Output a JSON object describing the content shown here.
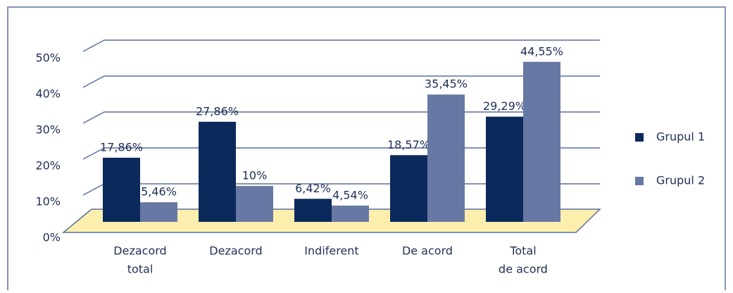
{
  "chart_data": {
    "type": "bar",
    "categories": [
      [
        "Dezacord",
        "total"
      ],
      [
        "Dezacord"
      ],
      [
        "Indiferent"
      ],
      [
        "De acord"
      ],
      [
        "Total",
        "de acord"
      ]
    ],
    "series": [
      {
        "name": "Grupul 1",
        "color": "#0b2a5b",
        "values": [
          17.86,
          27.86,
          6.42,
          18.57,
          29.29
        ],
        "value_labels": [
          "17,86%",
          "27,86%",
          "6,42%",
          "18,57%",
          "29,29%"
        ]
      },
      {
        "name": "Grupul 2",
        "color": "#6878a4",
        "values": [
          5.46,
          10,
          4.54,
          35.45,
          44.55
        ],
        "value_labels": [
          "5,46%",
          "10%",
          "4,54%",
          "35,45%",
          "44,55%"
        ]
      }
    ],
    "ylim": [
      0,
      50
    ],
    "yticks": [
      {
        "value": 0,
        "label": "0%"
      },
      {
        "value": 10,
        "label": "10%"
      },
      {
        "value": 20,
        "label": "20%"
      },
      {
        "value": 30,
        "label": "30%"
      },
      {
        "value": 40,
        "label": "40%"
      },
      {
        "value": 50,
        "label": "50%"
      }
    ],
    "grid": true,
    "legend": "right",
    "floor_color": "#fcefae"
  }
}
